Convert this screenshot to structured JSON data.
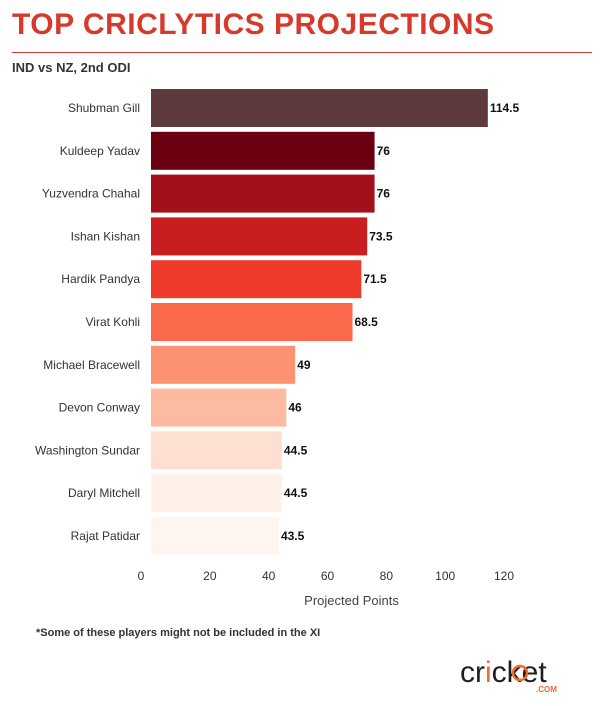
{
  "header": {
    "title": "TOP CRICLYTICS PROJECTIONS",
    "subtitle": "IND vs NZ, 2nd ODI"
  },
  "footnote": "*Some of these players might not be included in the XI",
  "logo": {
    "text": "cricket",
    "sub": ".COM"
  },
  "colors": {
    "accent": "#d63a2c",
    "bars": [
      "#5e3a3c",
      "#6b0010",
      "#a3101b",
      "#c81e20",
      "#ee3b2b",
      "#fb6a4a",
      "#fc9272",
      "#fcbba1",
      "#fee0d2",
      "#fff0ea",
      "#fff5f0"
    ]
  },
  "chart_data": {
    "type": "bar",
    "orientation": "horizontal",
    "categories": [
      "Shubman Gill",
      "Kuldeep Yadav",
      "Yuzvendra Chahal",
      "Ishan Kishan",
      "Hardik Pandya",
      "Virat Kohli",
      "Michael Bracewell",
      "Devon Conway",
      "Washington Sundar",
      "Daryl Mitchell",
      "Rajat Patidar"
    ],
    "values": [
      114.5,
      76,
      76,
      73.5,
      71.5,
      68.5,
      49,
      46,
      44.5,
      44.5,
      43.5
    ],
    "value_labels": [
      "114.5",
      "76",
      "76",
      "73.5",
      "71.5",
      "68.5",
      "49",
      "46",
      "44.5",
      "44.5",
      "43.5"
    ],
    "xlabel": "Projected Points",
    "ylabel": "",
    "xlim": [
      0,
      120
    ],
    "x_ticks": [
      "0",
      "20",
      "40",
      "60",
      "80",
      "100",
      "120"
    ],
    "grid": false
  }
}
